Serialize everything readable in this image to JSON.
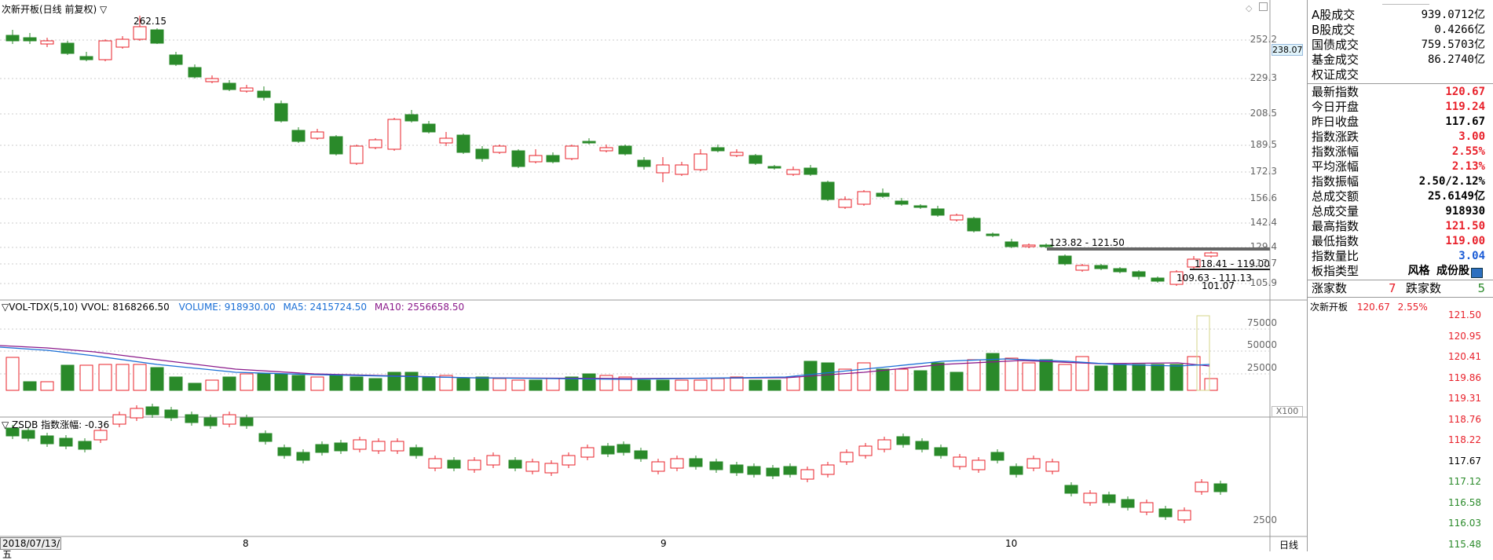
{
  "main_chart": {
    "title": "次新开板(日线 前复权)",
    "menu_glyph": "▽",
    "high_marker": "262.15",
    "low_marker": "101.07",
    "price_tag": "238.07",
    "range_labels": [
      "123.82 - 121.50",
      "118.41 - 119.00",
      "109.63 - 111.13"
    ],
    "y_ticks": [
      "252.2",
      "229.3",
      "208.5",
      "189.5",
      "172.3",
      "156.6",
      "142.4",
      "129.4",
      "117.7",
      "105.9"
    ],
    "up_color": "#e8202a",
    "down_color": "#2a8a2a"
  },
  "volume_panel": {
    "title_prefix": "▽VOL-TDX(5,10) VVOL: 8168266.50",
    "volume_label": "VOLUME: 918930.00",
    "ma5_label": "MA5: 2415724.50",
    "ma10_label": "MA10: 2556658.50",
    "y_ticks": [
      "75000",
      "50000",
      "25000"
    ],
    "multiplier": "X100"
  },
  "zsdb_panel": {
    "title": "▽ ZSDB 指数涨幅: -0.36",
    "y_tick": "2500"
  },
  "time_axis": {
    "date_box": "2018/07/13/五",
    "months": [
      "8",
      "9",
      "10"
    ],
    "period": "日线"
  },
  "right_panel": {
    "top_rows": [
      {
        "label": "A股成交",
        "value": "939.0712亿"
      },
      {
        "label": "B股成交",
        "value": "0.4266亿"
      },
      {
        "label": "国债成交",
        "value": "759.5703亿"
      },
      {
        "label": "基金成交",
        "value": "86.2740亿"
      },
      {
        "label": "权证成交",
        "value": ""
      }
    ],
    "index_rows": [
      {
        "label": "最新指数",
        "value": "120.67",
        "color": "#e8202a"
      },
      {
        "label": "今日开盘",
        "value": "119.24",
        "color": "#e8202a"
      },
      {
        "label": "昨日收盘",
        "value": "117.67",
        "color": "#000000"
      },
      {
        "label": "指数涨跌",
        "value": "3.00",
        "color": "#e8202a"
      },
      {
        "label": "指数涨幅",
        "value": "2.55%",
        "color": "#e8202a"
      },
      {
        "label": "平均涨幅",
        "value": "2.13%",
        "color": "#e8202a"
      },
      {
        "label": "指数振幅",
        "value": "2.50/2.12%",
        "color": "#000000"
      },
      {
        "label": "总成交额",
        "value": "25.6149亿",
        "color": "#000000"
      },
      {
        "label": "总成交量",
        "value": "918930",
        "color": "#000000"
      },
      {
        "label": "最高指数",
        "value": "121.50",
        "color": "#e8202a"
      },
      {
        "label": "最低指数",
        "value": "119.00",
        "color": "#e8202a"
      },
      {
        "label": "指数量比",
        "value": "3.04",
        "color": "#1a5bd6"
      },
      {
        "label": "板指类型",
        "value": "风格 成份股",
        "color": "#000000"
      }
    ],
    "breadth_up_label": "涨家数",
    "breadth_up": "7",
    "breadth_down_label": "跌家数",
    "breadth_down": "5"
  },
  "mini_chart": {
    "name": "次新开板",
    "last": "120.67",
    "pct": "2.55%",
    "y_ticks": [
      {
        "v": "121.50",
        "c": "#e8202a"
      },
      {
        "v": "120.95",
        "c": "#e8202a"
      },
      {
        "v": "120.41",
        "c": "#e8202a"
      },
      {
        "v": "119.86",
        "c": "#e8202a"
      },
      {
        "v": "119.31",
        "c": "#e8202a"
      },
      {
        "v": "118.76",
        "c": "#e8202a"
      },
      {
        "v": "118.22",
        "c": "#e8202a"
      },
      {
        "v": "117.67",
        "c": "#000000"
      },
      {
        "v": "117.12",
        "c": "#2a8a2a"
      },
      {
        "v": "116.58",
        "c": "#2a8a2a"
      },
      {
        "v": "116.03",
        "c": "#2a8a2a"
      },
      {
        "v": "115.48",
        "c": "#2a8a2a"
      }
    ]
  }
}
